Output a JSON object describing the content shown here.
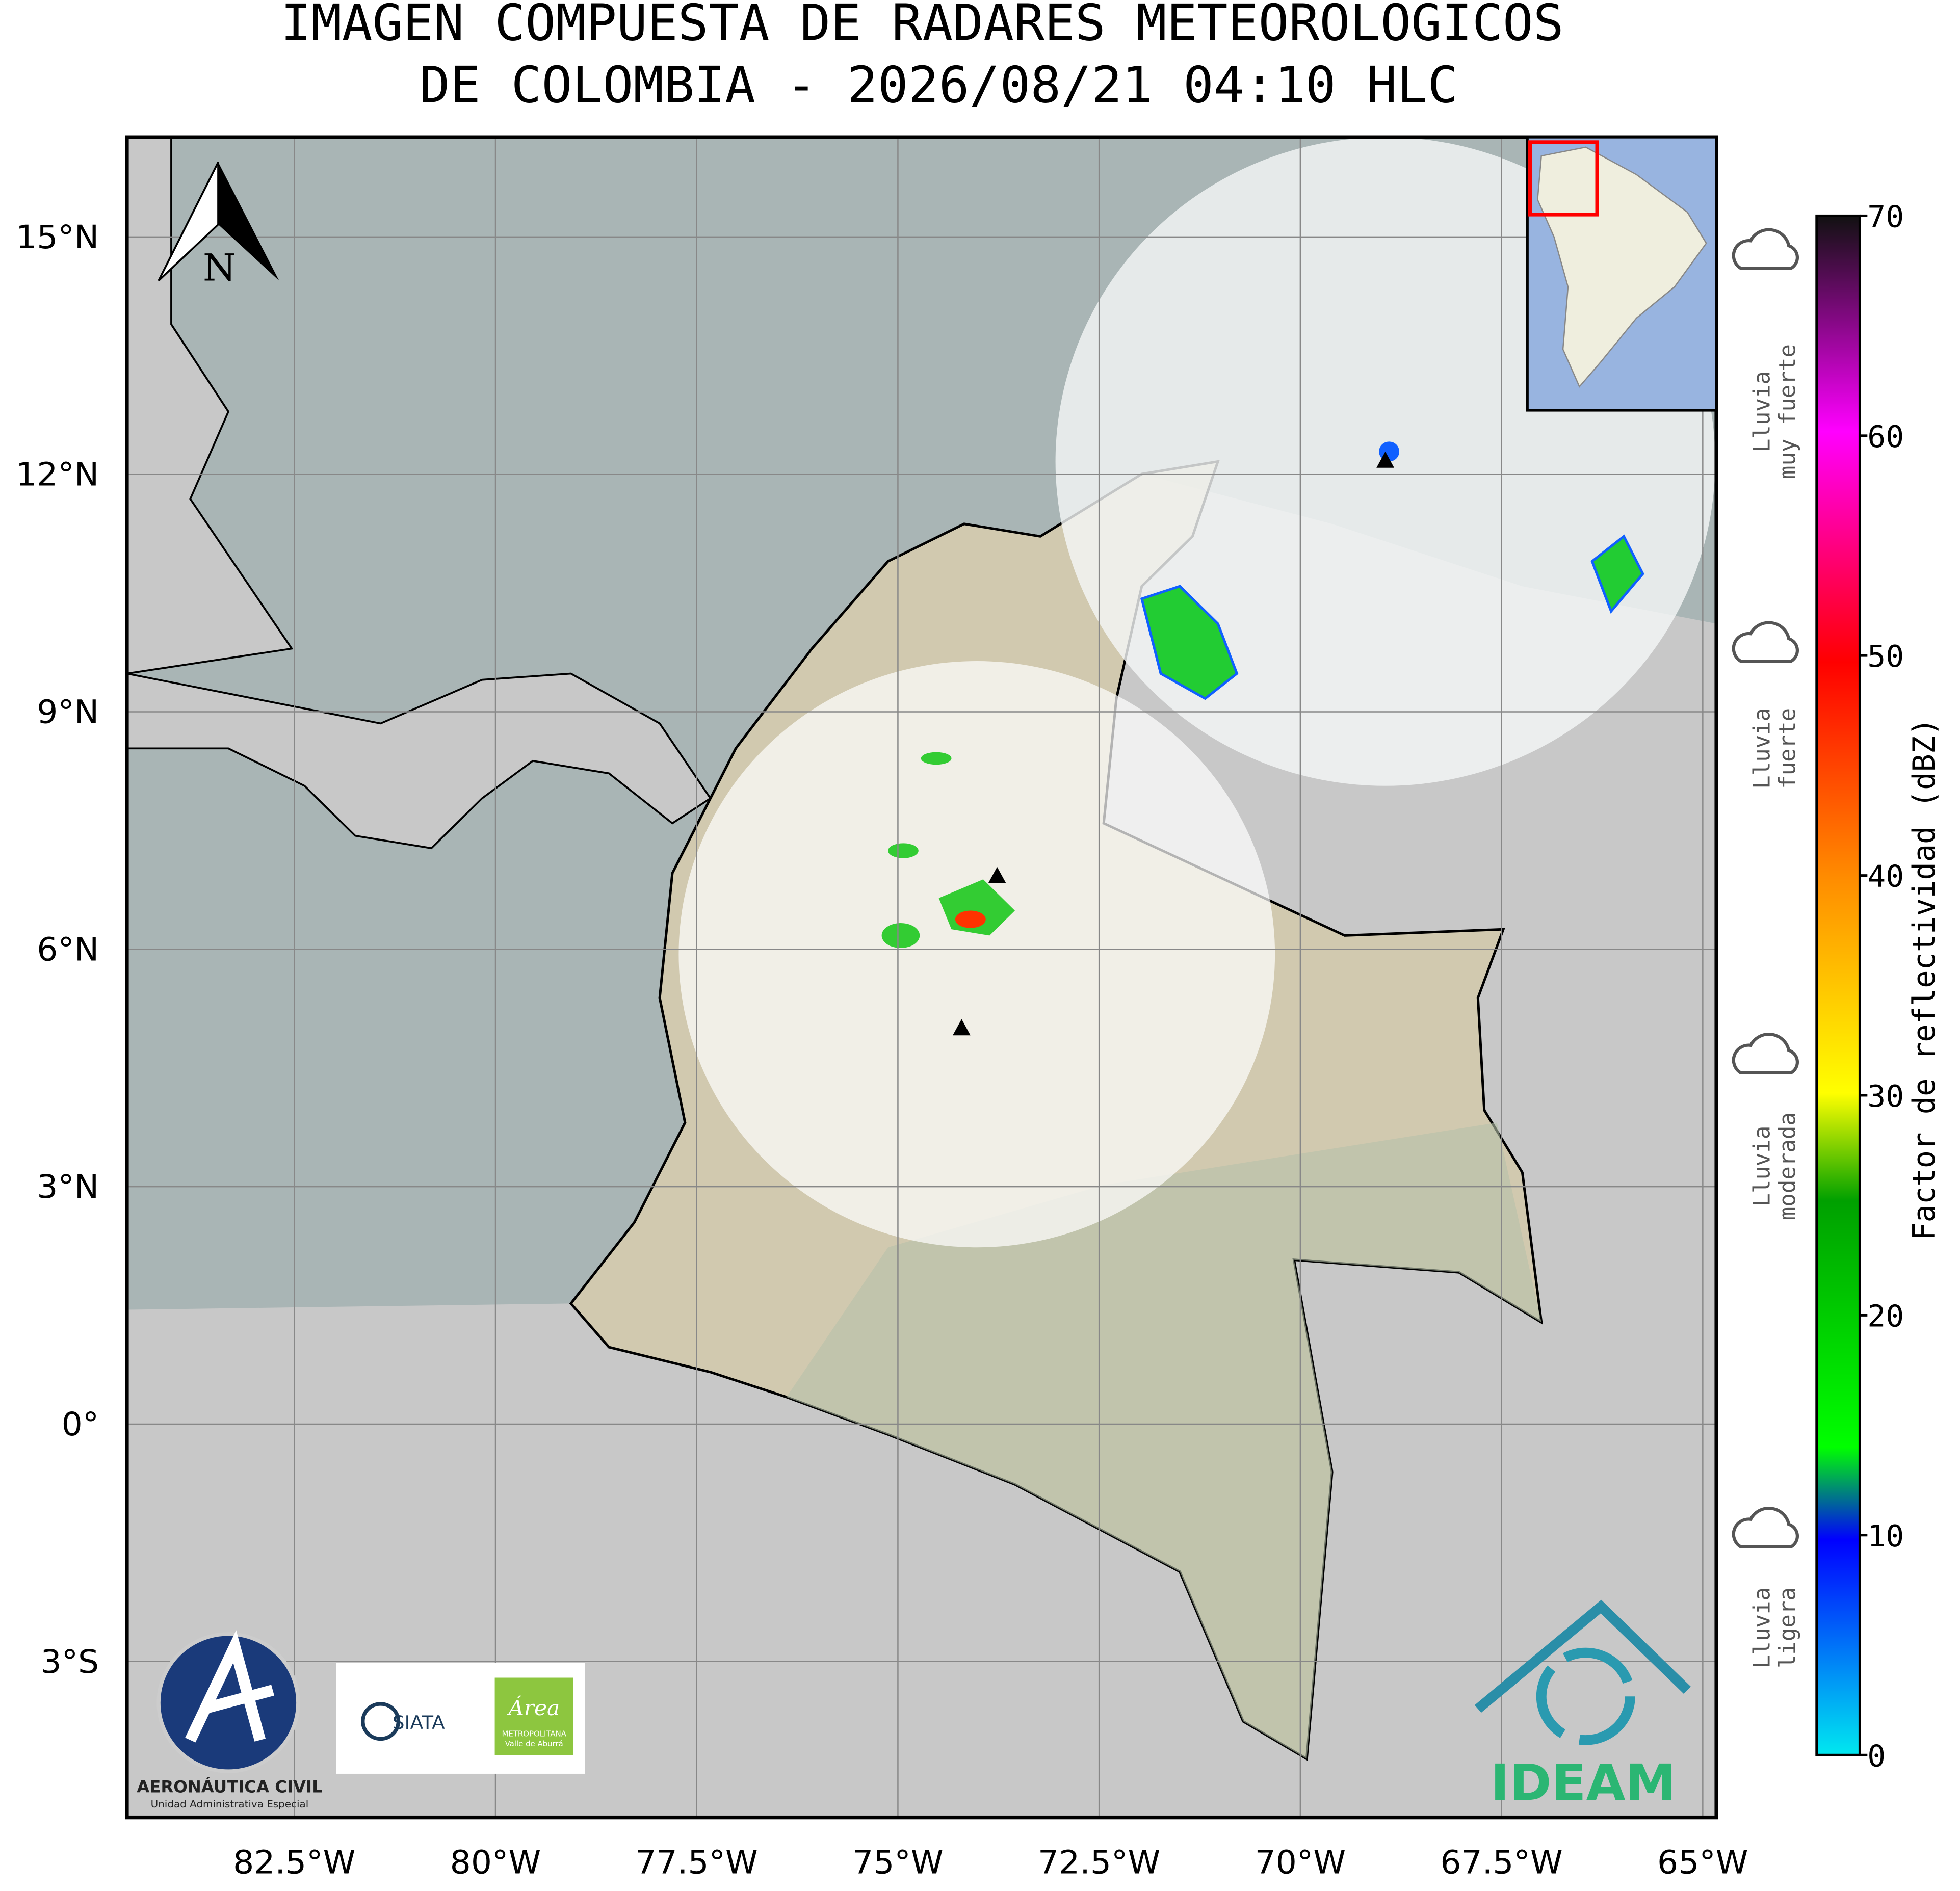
{
  "title": [
    "IMAGEN COMPUESTA DE RADARES METEOROLOGICOS",
    "DE COLOMBIA - 2026/08/21 04:10 HLC"
  ],
  "map": {
    "north": "N",
    "lon_range": [
      -84.58,
      -64.83
    ],
    "lat_range": [
      -4.97,
      16.26
    ],
    "lon_ticks": [
      {
        "value": -82.5,
        "label": "82.5°W"
      },
      {
        "value": -80,
        "label": "80°W"
      },
      {
        "value": -77.5,
        "label": "77.5°W"
      },
      {
        "value": -75,
        "label": "75°W"
      },
      {
        "value": -72.5,
        "label": "72.5°W"
      },
      {
        "value": -70,
        "label": "70°W"
      },
      {
        "value": -67.5,
        "label": "67.5°W"
      },
      {
        "value": -65,
        "label": "65°W"
      }
    ],
    "lat_ticks": [
      {
        "value": 15,
        "label": "15°N"
      },
      {
        "value": 12,
        "label": "12°N"
      },
      {
        "value": 9,
        "label": "9°N"
      },
      {
        "value": 6,
        "label": "6°N"
      },
      {
        "value": 3,
        "label": "3°N"
      },
      {
        "value": 0,
        "label": "0°"
      },
      {
        "value": -3,
        "label": "3°S"
      }
    ]
  },
  "colorbar": {
    "label": "Factor de reflectividad (dBZ)",
    "range": [
      0,
      70
    ],
    "ticks": [
      0,
      10,
      20,
      30,
      40,
      50,
      60,
      70
    ]
  },
  "rain_levels": [
    [
      "Lluvia",
      "muy fuerte"
    ],
    [
      "Lluvia",
      "fuerte"
    ],
    [
      "Lluvia",
      "moderada"
    ],
    [
      "Lluvia",
      "ligera"
    ]
  ],
  "logos": {
    "aerocivil": "AERONÁUTICA CIVIL",
    "aerocivil_sub": "Unidad Administrativa Especial",
    "siata": "SIATA",
    "area": "Área",
    "area_sub1": "METROPOLITANA",
    "area_sub2": "Valle de Aburrá",
    "ideam": "IDEAM"
  }
}
